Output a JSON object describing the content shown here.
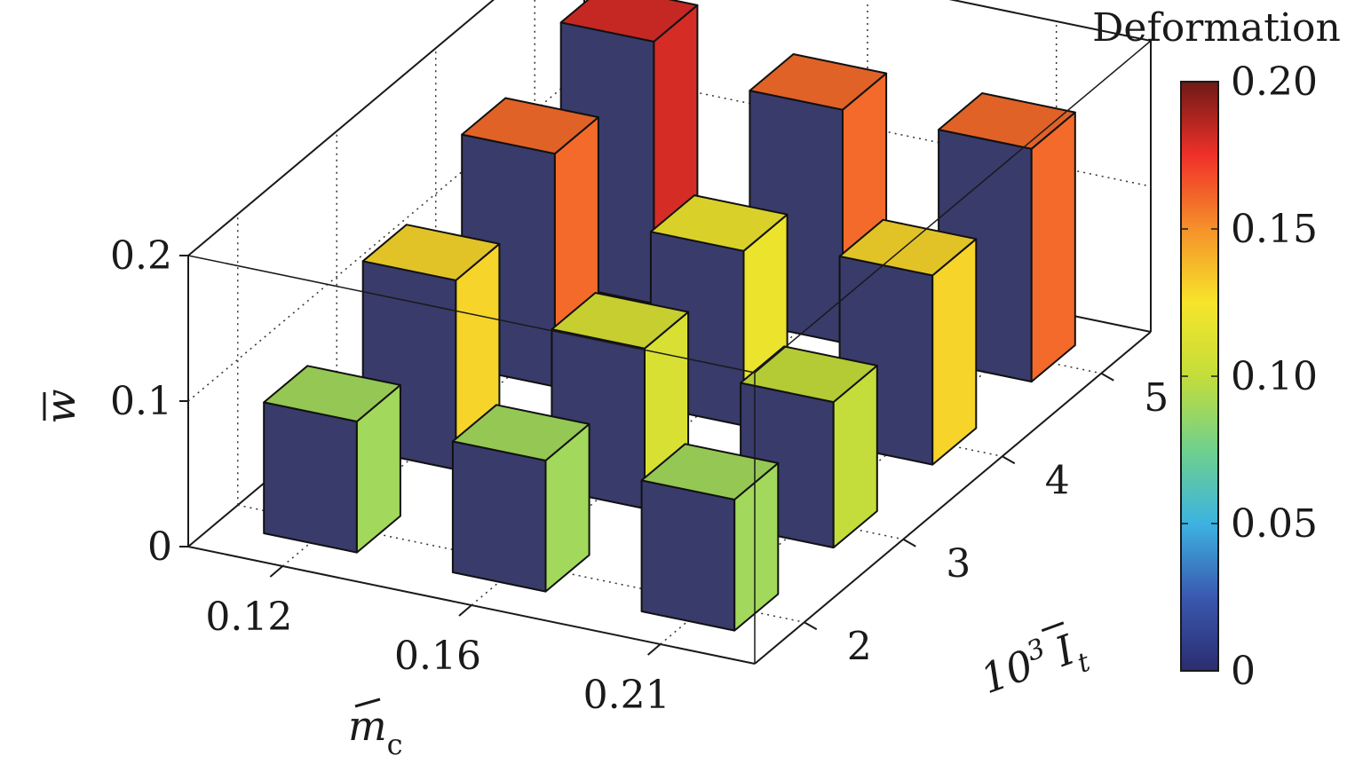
{
  "chart_data": {
    "type": "bar",
    "ylabel": "w",
    "xlabel": "m",
    "xlabel_sub": "c",
    "depth_label": "10",
    "depth_label_sup": "3",
    "depth_label_var": "I",
    "depth_label_sub": "t",
    "x_categories": [
      "0.12",
      "0.16",
      "0.21"
    ],
    "y_categories": [
      "2",
      "3",
      "4",
      "5"
    ],
    "zlim": [
      0,
      0.2
    ],
    "z_ticks": [
      "0",
      "0.1",
      "0.2"
    ],
    "grid": true,
    "values": [
      [
        0.09,
        0.13,
        0.16,
        0.18
      ],
      [
        0.09,
        0.11,
        0.12,
        0.16
      ],
      [
        0.09,
        0.1,
        0.13,
        0.16
      ]
    ],
    "colorbar": {
      "title": "Deformation",
      "range": [
        0,
        0.2
      ],
      "ticks": [
        "0",
        "0.05",
        "0.10",
        "0.15",
        "0.20"
      ],
      "stops": [
        "#2b2d6e",
        "#3a58b0",
        "#3cb3e0",
        "#6fd08c",
        "#c4dd3a",
        "#f6e52a",
        "#f5912a",
        "#f0302a",
        "#6e1a16"
      ]
    },
    "side_color": "#393b6b"
  }
}
